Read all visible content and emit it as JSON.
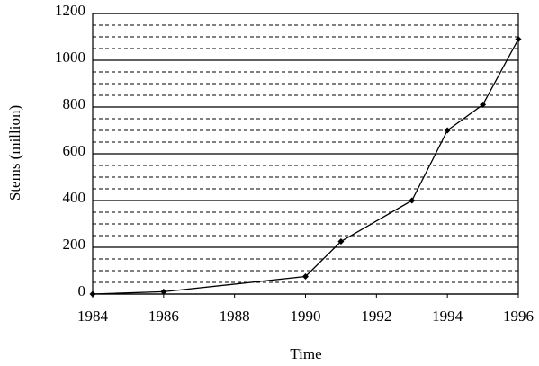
{
  "chart_data": {
    "type": "line",
    "x_label": "Time",
    "y_label": "Stems (million)",
    "x": [
      1984,
      1986,
      1990,
      1991,
      1993,
      1994,
      1995,
      1996
    ],
    "values": [
      0,
      10,
      75,
      225,
      400,
      700,
      810,
      1090
    ],
    "color": "#000000",
    "xlim": [
      1984,
      1996
    ],
    "xticks": [
      1984,
      1986,
      1988,
      1990,
      1992,
      1994,
      1996
    ],
    "ylim": [
      0,
      1200
    ],
    "yticks": [
      0,
      200,
      400,
      600,
      800,
      1000,
      1200
    ],
    "y_minor_grid": [
      50,
      100,
      150,
      250,
      300,
      350,
      450,
      500,
      550,
      650,
      700,
      750,
      850,
      900,
      950,
      1050,
      1100,
      1150
    ],
    "grid": true
  }
}
